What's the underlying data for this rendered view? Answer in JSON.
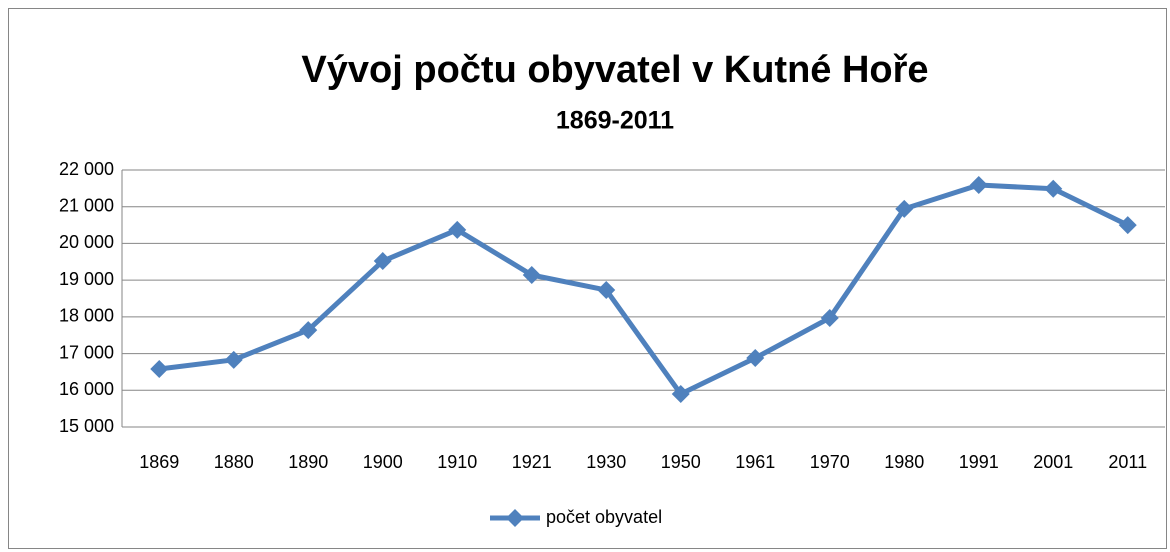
{
  "chart_data": {
    "type": "line",
    "title": "Vývoj  počtu obyvatel v Kutné Hoře",
    "subtitle": "1869-2011",
    "categories": [
      "1869",
      "1880",
      "1890",
      "1900",
      "1910",
      "1921",
      "1930",
      "1950",
      "1961",
      "1970",
      "1980",
      "1991",
      "2001",
      "2011"
    ],
    "series": [
      {
        "name": "počet obyvatel",
        "color": "#4f81bd",
        "values": [
          16580,
          16830,
          17640,
          19520,
          20370,
          19140,
          18730,
          15900,
          16880,
          17970,
          20940,
          21590,
          21490,
          20500
        ]
      }
    ],
    "ylim": [
      15000,
      22000
    ],
    "yticks": [
      {
        "value": 15000,
        "label": "15 000"
      },
      {
        "value": 16000,
        "label": "16 000"
      },
      {
        "value": 17000,
        "label": "17 000"
      },
      {
        "value": 18000,
        "label": "18 000"
      },
      {
        "value": 19000,
        "label": "19 000"
      },
      {
        "value": 20000,
        "label": "20 000"
      },
      {
        "value": 21000,
        "label": "21 000"
      },
      {
        "value": 22000,
        "label": "22 000"
      }
    ],
    "grid": true,
    "legend": "bottom"
  }
}
